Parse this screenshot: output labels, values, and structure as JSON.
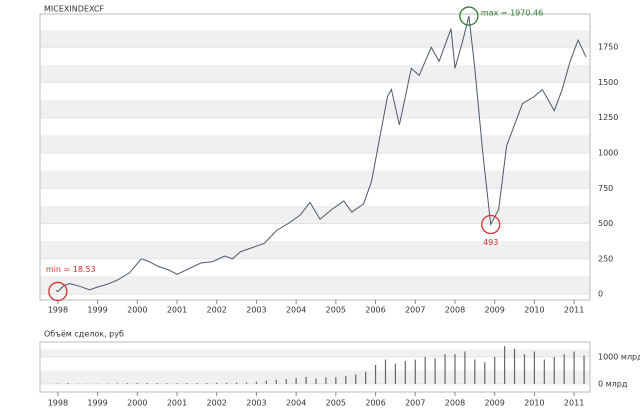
{
  "chart_data": [
    {
      "type": "line",
      "title": "MICEXINDEXCF",
      "x": [
        1997.95,
        1998.0,
        1998.15,
        1998.3,
        1998.55,
        1998.8,
        1999.0,
        1999.25,
        1999.5,
        1999.8,
        2000.1,
        2000.3,
        2000.5,
        2000.8,
        2001.0,
        2001.3,
        2001.6,
        2001.9,
        2002.2,
        2002.4,
        2002.6,
        2002.9,
        2003.2,
        2003.5,
        2003.8,
        2004.1,
        2004.35,
        2004.6,
        2004.9,
        2005.2,
        2005.4,
        2005.7,
        2005.9,
        2006.1,
        2006.3,
        2006.4,
        2006.6,
        2006.9,
        2007.1,
        2007.4,
        2007.6,
        2007.9,
        2008.0,
        2008.2,
        2008.35,
        2008.5,
        2008.7,
        2008.9,
        2009.1,
        2009.3,
        2009.5,
        2009.7,
        2010.0,
        2010.2,
        2010.5,
        2010.7,
        2010.9,
        2011.1,
        2011.3
      ],
      "series": [
        {
          "name": "MICEXINDEXCF",
          "color": "#4a5a6a",
          "values": [
            25,
            18.53,
            60,
            75,
            55,
            30,
            50,
            70,
            100,
            150,
            250,
            230,
            200,
            170,
            140,
            180,
            220,
            230,
            270,
            250,
            300,
            330,
            360,
            450,
            500,
            560,
            650,
            530,
            600,
            660,
            580,
            640,
            800,
            1100,
            1400,
            1450,
            1200,
            1600,
            1550,
            1750,
            1650,
            1880,
            1600,
            1800,
            1970.46,
            1600,
            1000,
            493,
            600,
            1050,
            1200,
            1350,
            1400,
            1450,
            1300,
            1450,
            1650,
            1800,
            1680
          ]
        }
      ],
      "annotations": [
        {
          "text": "max = 1970.46",
          "x": 2008.35,
          "y": 1970.46,
          "color": "#2e7d32"
        },
        {
          "text": "493",
          "x": 2008.9,
          "y": 493,
          "color": "#d32f2f"
        },
        {
          "text": "min = 18.53",
          "x": 1998.0,
          "y": 18.53,
          "color": "#d32f2f"
        }
      ],
      "xlim": [
        1997.55,
        2011.4
      ],
      "xticks": [
        1998,
        1999,
        2000,
        2001,
        2002,
        2003,
        2004,
        2005,
        2006,
        2007,
        2008,
        2009,
        2010,
        2011
      ],
      "ylim": [
        -42,
        1985
      ],
      "yticks": [
        0,
        250,
        500,
        750,
        1000,
        1250,
        1500,
        1750
      ],
      "grid": true
    },
    {
      "type": "bar",
      "title": "Объём сделок, руб",
      "x": [
        1998.0,
        1998.25,
        1998.5,
        1998.75,
        1999.0,
        1999.25,
        1999.5,
        1999.75,
        2000.0,
        2000.25,
        2000.5,
        2000.75,
        2001.0,
        2001.25,
        2001.5,
        2001.75,
        2002.0,
        2002.25,
        2002.5,
        2002.75,
        2003.0,
        2003.25,
        2003.5,
        2003.75,
        2004.0,
        2004.25,
        2004.5,
        2004.75,
        2005.0,
        2005.25,
        2005.5,
        2005.75,
        2006.0,
        2006.25,
        2006.5,
        2006.75,
        2007.0,
        2007.25,
        2007.5,
        2007.75,
        2008.0,
        2008.25,
        2008.5,
        2008.75,
        2009.0,
        2009.25,
        2009.5,
        2009.75,
        2010.0,
        2010.25,
        2010.5,
        2010.75,
        2011.0,
        2011.25
      ],
      "values": [
        20,
        30,
        15,
        10,
        10,
        15,
        20,
        25,
        40,
        35,
        30,
        25,
        25,
        30,
        30,
        35,
        40,
        45,
        50,
        55,
        80,
        120,
        150,
        180,
        220,
        260,
        200,
        240,
        250,
        300,
        350,
        450,
        700,
        900,
        750,
        850,
        900,
        1000,
        950,
        1100,
        1100,
        1200,
        900,
        800,
        1000,
        1400,
        1300,
        1100,
        1200,
        900,
        1000,
        1100,
        1200,
        1050
      ],
      "color": "#666666",
      "xlim": [
        1997.55,
        2011.4
      ],
      "xticks": [
        1998,
        1999,
        2000,
        2001,
        2002,
        2003,
        2004,
        2005,
        2006,
        2007,
        2008,
        2009,
        2010,
        2011
      ],
      "ylim": [
        -300,
        1550
      ],
      "yticks": [
        {
          "value": 0,
          "label": "0 млрд"
        },
        {
          "value": 1000,
          "label": "1000 млрд"
        }
      ],
      "grid": true
    }
  ]
}
